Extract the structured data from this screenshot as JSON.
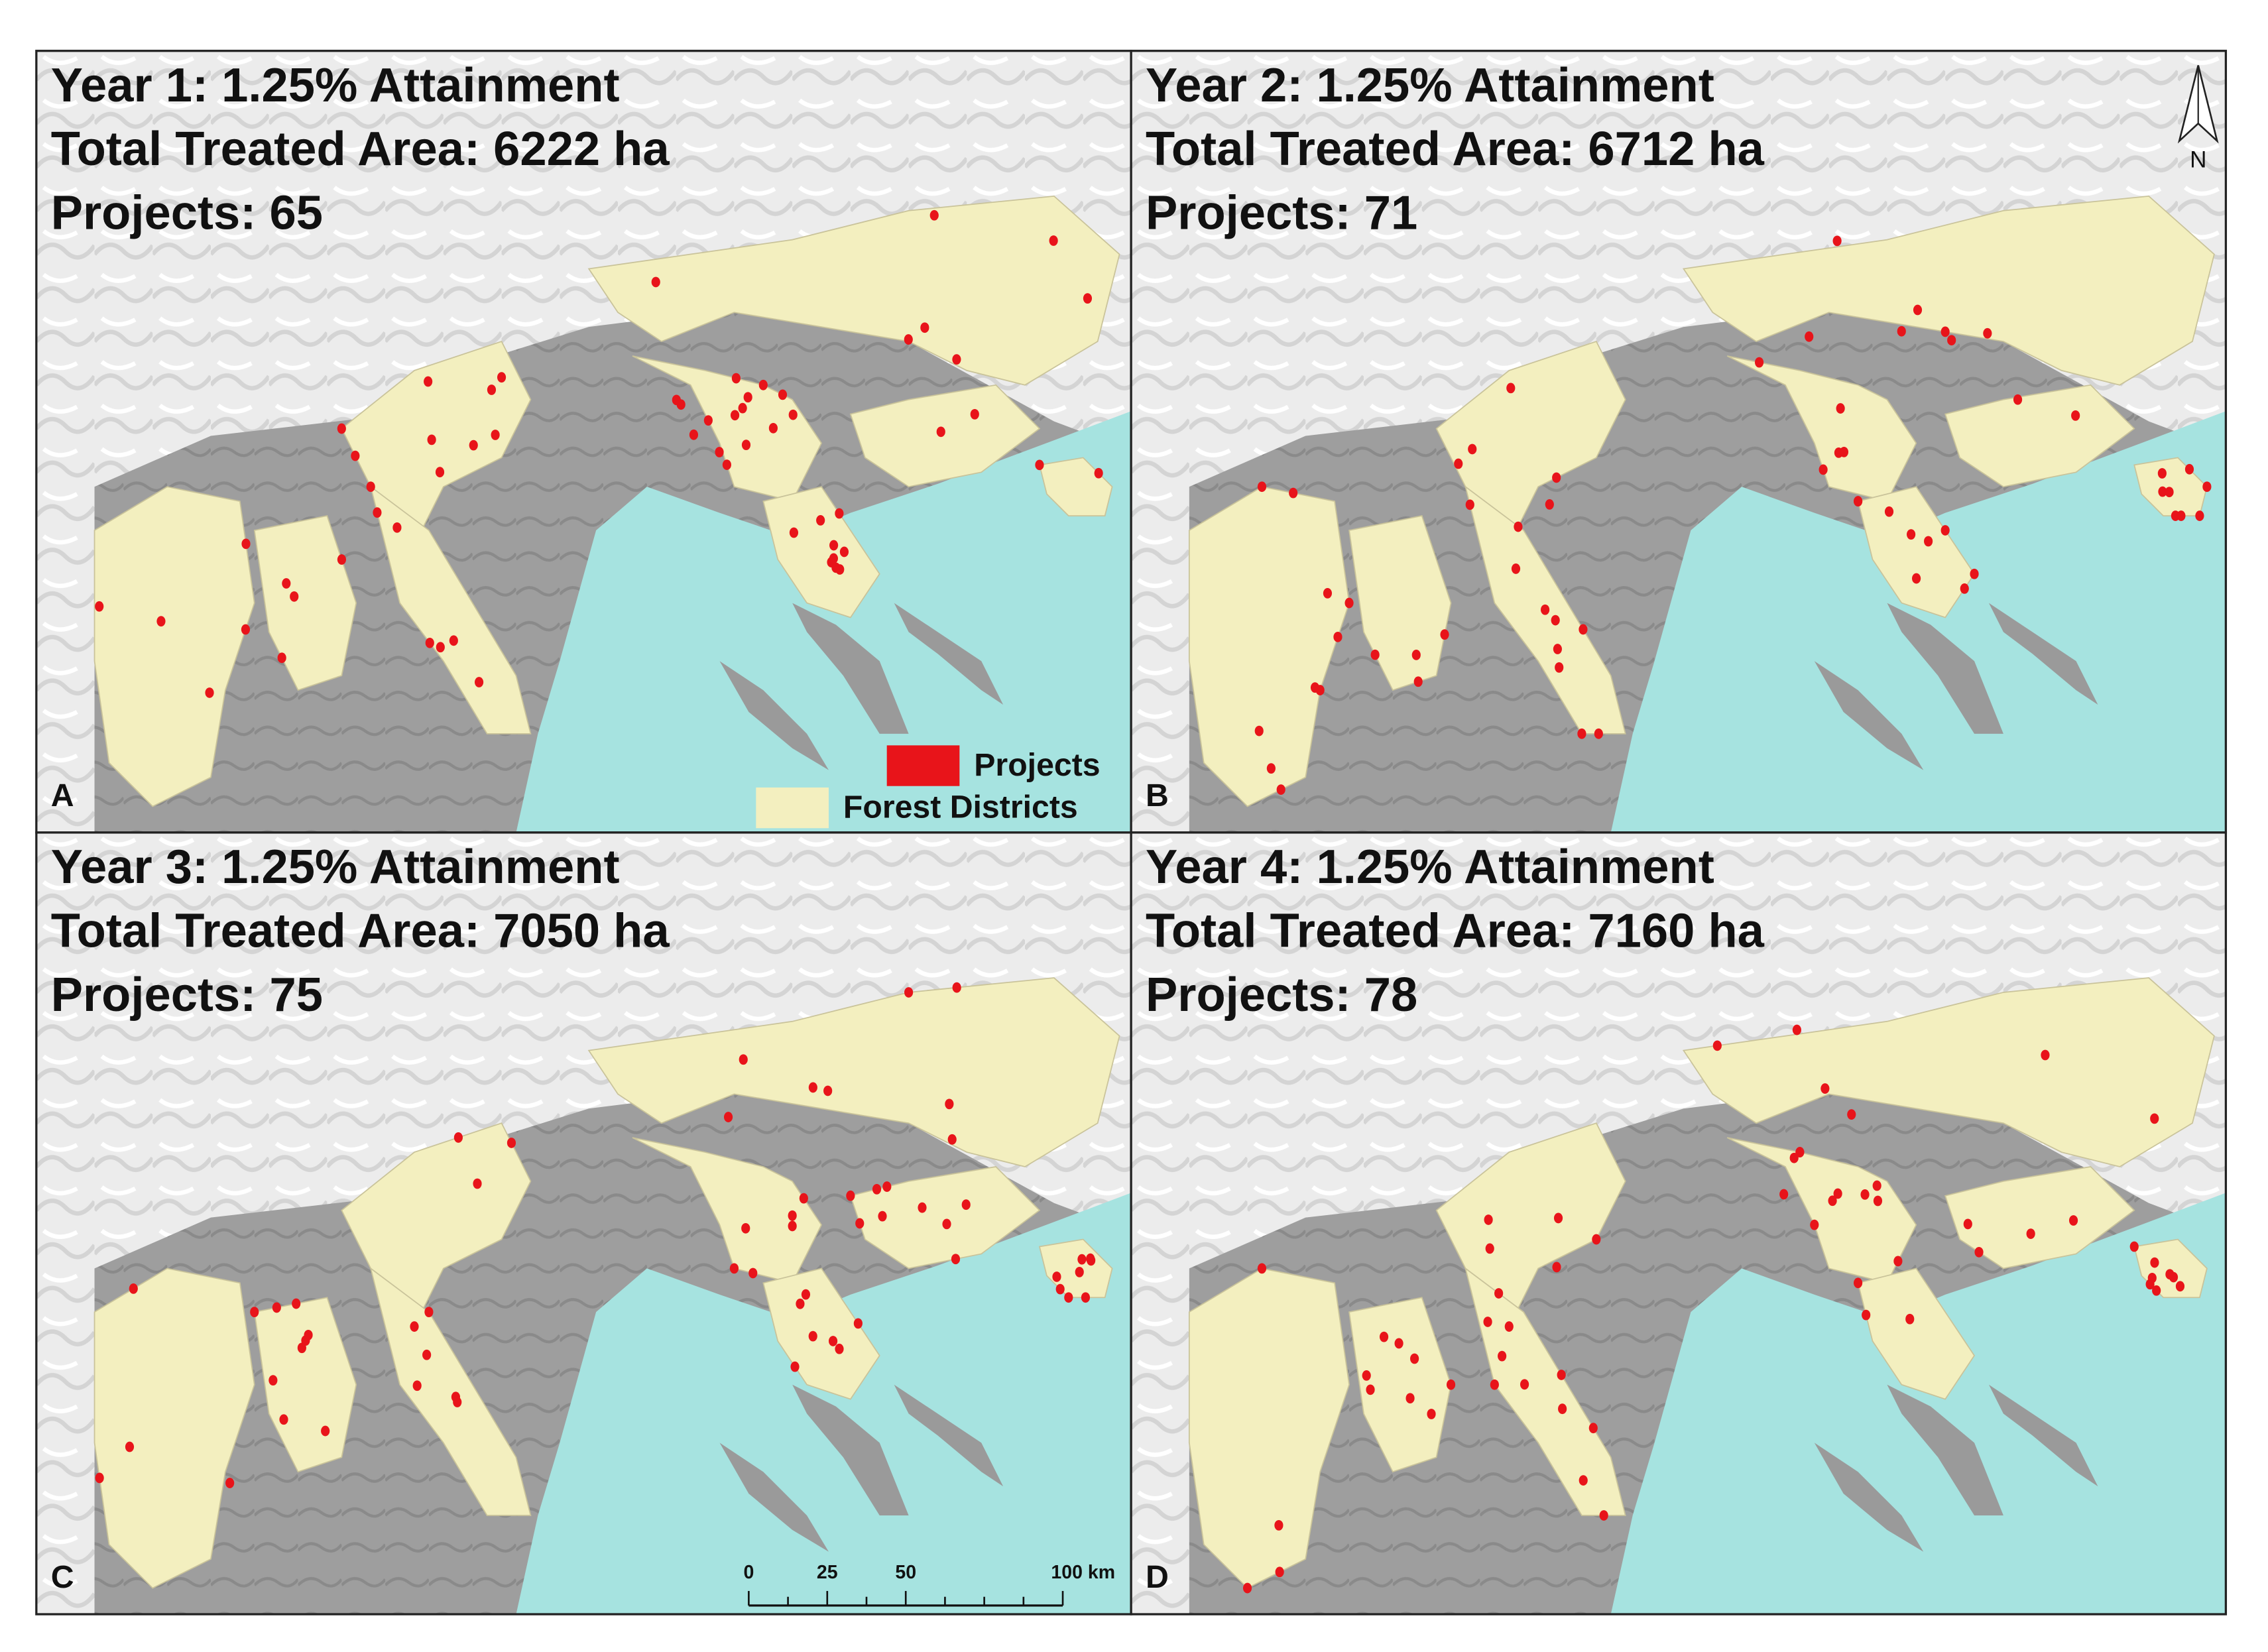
{
  "panels": [
    {
      "lines": [
        "Year 1: 1.25% Attainment",
        "Total Treated Area: 6222 ha",
        "Projects: 65"
      ],
      "letter": "A"
    },
    {
      "lines": [
        "Year 2: 1.25% Attainment",
        "Total Treated Area: 6712 ha",
        "Projects: 71"
      ],
      "letter": "B"
    },
    {
      "lines": [
        "Year 3: 1.25% Attainment",
        "Total Treated Area: 7050 ha",
        "Projects: 75"
      ],
      "letter": "C"
    },
    {
      "lines": [
        "Year 4: 1.25% Attainment",
        "Total Treated Area: 7160 ha",
        "Projects: 78"
      ],
      "letter": "D"
    }
  ],
  "legend": [
    "Projects",
    "Forest Districts"
  ],
  "north": "N",
  "scale_bar": [
    "0",
    "25",
    "50",
    "100 km"
  ]
}
